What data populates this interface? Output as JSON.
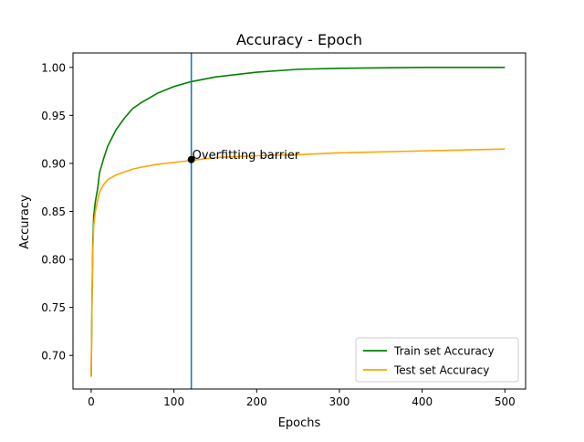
{
  "chart_data": {
    "type": "line",
    "title": "Accuracy - Epoch",
    "xlabel": "Epochs",
    "ylabel": "Accuracy",
    "xlim": [
      -22,
      525
    ],
    "ylim": [
      0.665,
      1.015
    ],
    "x_ticks": [
      0,
      100,
      200,
      300,
      400,
      500
    ],
    "y_ticks": [
      0.7,
      0.75,
      0.8,
      0.85,
      0.9,
      0.95,
      1.0
    ],
    "x_tick_labels": [
      "0",
      "100",
      "200",
      "300",
      "400",
      "500"
    ],
    "y_tick_labels": [
      "0.70",
      "0.75",
      "0.80",
      "0.85",
      "0.90",
      "0.95",
      "1.00"
    ],
    "grid": false,
    "legend_position": "lower-right",
    "series": [
      {
        "name": "Train set Accuracy",
        "color": "#008000",
        "x": [
          0,
          1,
          2,
          3,
          5,
          8,
          10,
          15,
          20,
          30,
          40,
          50,
          60,
          80,
          100,
          120,
          150,
          200,
          250,
          300,
          400,
          500
        ],
        "values": [
          0.678,
          0.76,
          0.82,
          0.845,
          0.86,
          0.875,
          0.89,
          0.905,
          0.918,
          0.935,
          0.947,
          0.957,
          0.963,
          0.973,
          0.98,
          0.985,
          0.99,
          0.995,
          0.998,
          0.999,
          1.0,
          1.0
        ]
      },
      {
        "name": "Test set Accuracy",
        "color": "#ffa500",
        "x": [
          0,
          1,
          2,
          3,
          5,
          8,
          10,
          15,
          20,
          30,
          40,
          50,
          60,
          80,
          100,
          120,
          150,
          200,
          250,
          300,
          400,
          500
        ],
        "values": [
          0.678,
          0.76,
          0.81,
          0.835,
          0.85,
          0.862,
          0.87,
          0.878,
          0.883,
          0.888,
          0.891,
          0.894,
          0.896,
          0.899,
          0.901,
          0.903,
          0.906,
          0.908,
          0.909,
          0.911,
          0.913,
          0.915
        ]
      }
    ],
    "vertical_line": {
      "x": 121,
      "color": "#1f77b4"
    },
    "annotation": {
      "x": 121,
      "y": 0.904,
      "text": "Overfitting barrier",
      "marker_color": "#000000"
    }
  }
}
